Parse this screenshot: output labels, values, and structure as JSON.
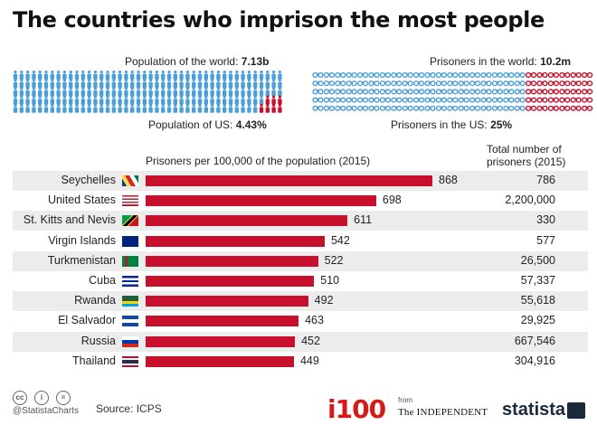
{
  "title": "The countries who imprison the most people",
  "infographic": {
    "world_pop_label": "Population of the world:",
    "world_pop_value": "7.13b",
    "us_pop_label": "Population of US:",
    "us_pop_value": "4.43%",
    "world_prisoners_label": "Prisoners in the world:",
    "world_prisoners_value": "10.2m",
    "us_prisoners_label": "Prisoners in the US:",
    "us_prisoners_value": "25%",
    "colors": {
      "world": "#4a9fd8",
      "us": "#c8102e"
    }
  },
  "chart_data": {
    "type": "bar",
    "xlabel": "Prisoners per 100,000 of the population (2015)",
    "right_column_header": "Total number of prisoners  (2015)",
    "categories": [
      "Seychelles",
      "United States",
      "St. Kitts and Nevis",
      "Virgin Islands",
      "Turkmenistan",
      "Cuba",
      "Rwanda",
      "El Salvador",
      "Russia",
      "Thailand"
    ],
    "values": [
      868,
      698,
      611,
      542,
      522,
      510,
      492,
      463,
      452,
      449
    ],
    "value_labels": [
      "868",
      "698",
      "611",
      "542",
      "522",
      "510",
      "492",
      "463",
      "452",
      "449"
    ],
    "totals": [
      "786",
      "2,200,000",
      "330",
      "577",
      "26,500",
      "57,337",
      "55,618",
      "29,925",
      "667,546",
      "304,916"
    ],
    "flags": [
      "seychelles-flag",
      "us-flag",
      "st-kitts-flag",
      "virgin-islands-flag",
      "turkmenistan-flag",
      "cuba-flag",
      "rwanda-flag",
      "el-salvador-flag",
      "russia-flag",
      "thailand-flag"
    ],
    "bar_color": "#c8102e",
    "grid": false
  },
  "footer": {
    "handle": "@StatistaCharts",
    "source": "Source: ICPS",
    "brand_i100": "i100",
    "from": "from",
    "independent": "The INDEPENDENT",
    "statista": "statista"
  }
}
